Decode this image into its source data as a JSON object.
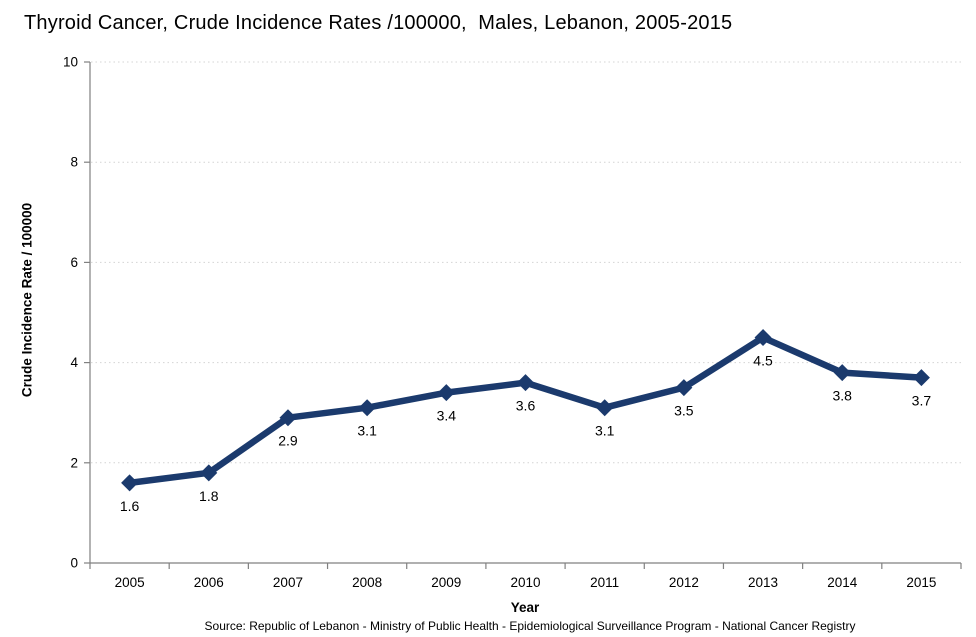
{
  "window": {
    "title": "Thyroid Cancer, Crude Incidence Rates /100000,  Males, Lebanon, 2005-2015"
  },
  "chart_data": {
    "type": "line",
    "title": "Thyroid Cancer, Crude Incidence Rates /100000,  Males, Lebanon, 2005-2015",
    "categories": [
      "2005",
      "2006",
      "2007",
      "2008",
      "2009",
      "2010",
      "2011",
      "2012",
      "2013",
      "2014",
      "2015"
    ],
    "series": [
      {
        "name": "Crude Incidence Rate",
        "values": [
          1.6,
          1.8,
          2.9,
          3.1,
          3.4,
          3.6,
          3.1,
          3.5,
          4.5,
          3.8,
          3.7
        ],
        "data_labels": [
          "1.6",
          "1.8",
          "2.9",
          "3.1",
          "3.4",
          "3.6",
          "3.1",
          "3.5",
          "4.5",
          "3.8",
          "3.7"
        ]
      }
    ],
    "xlabel": "Year",
    "ylabel": "Crude Incidence Rate / 100000",
    "ylim": [
      0,
      10
    ],
    "yticks": [
      0,
      2,
      4,
      6,
      8,
      10
    ],
    "grid": true,
    "gridline_style": "dotted",
    "legend_position": "none",
    "marker_shape": "diamond",
    "colors": {
      "series": "#1B3A6D",
      "gridline": "#D4D4D4",
      "axis": "#808080",
      "text": "#000000",
      "background": "#FFFFFF"
    },
    "source": "Source: Republic of Lebanon  - Ministry of Public Health - Epidemiological Surveillance Program - National Cancer Registry"
  }
}
